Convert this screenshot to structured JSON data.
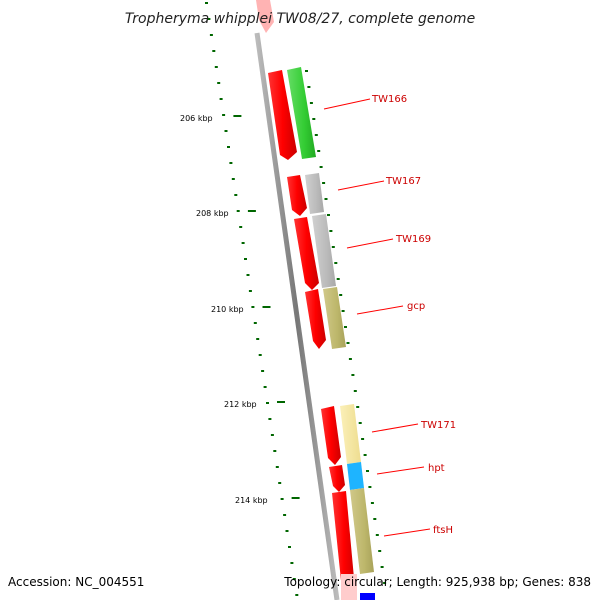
{
  "title": "Tropheryma whipplei TW08/27, complete genome",
  "footer": {
    "accession": "Accession: NC_004551",
    "summary": "Topology: circular; Length: 925,938 bp; Genes: 838"
  },
  "colors": {
    "backbone": "#888888",
    "reverse_strand": "#ff0000",
    "label": "#cc0000",
    "scale_tick": "#006600",
    "cds_green": "#33cc33",
    "cds_grey": "#bbbbbb",
    "cds_khaki": "#bdb76b",
    "cds_pale_yellow": "#f5e6a0",
    "cds_cyan": "#1eb4ff",
    "cds_blue": "#0000ff"
  },
  "scale_labels": [
    "206 kbp",
    "208 kbp",
    "210 kbp",
    "212 kbp",
    "214 kbp"
  ],
  "gene_labels": [
    "TW166",
    "TW167",
    "TW169",
    "gcp",
    "TW171",
    "hpt",
    "ftsH"
  ]
}
